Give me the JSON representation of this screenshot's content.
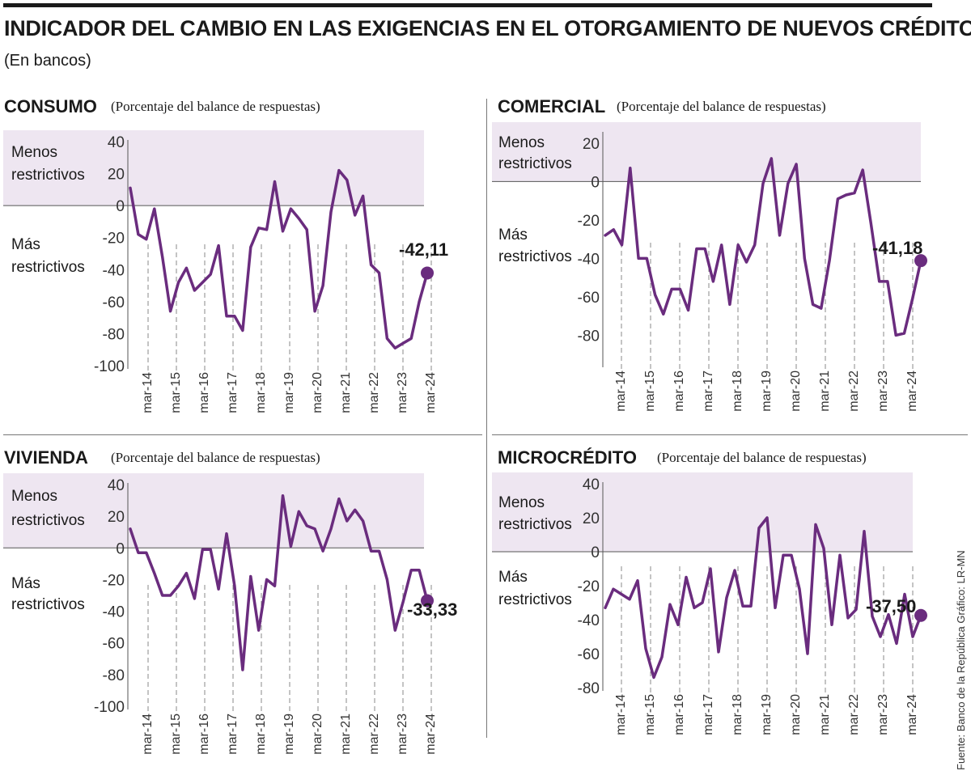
{
  "header": {
    "title": "INDICADOR DEL CAMBIO EN LAS EXIGENCIAS EN EL OTORGAMIENTO DE NUEVOS CRÉDITOS",
    "subtitle": "(En bancos)"
  },
  "source": "Fuente: Banco de la República  Gráfico: LR-MN",
  "colors": {
    "line": "#6a2c7e",
    "zone": "#eee6f1",
    "axis": "#555555",
    "text": "#1a1a1a"
  },
  "chart_data": [
    {
      "type": "line",
      "name": "CONSUMO",
      "unit_label": "(Porcentaje del balance de respuestas)",
      "zone_upper": [
        "Menos",
        "restrictivos"
      ],
      "zone_lower": [
        "Más",
        "restrictivos"
      ],
      "ylim": [
        -100,
        40
      ],
      "yticks": [
        40,
        20,
        0,
        -20,
        -40,
        -60,
        -80,
        -100
      ],
      "yticks_labels": [
        "40",
        "20",
        "0",
        "-20",
        "-40",
        "-60",
        "-80",
        "-100"
      ],
      "xlabels": [
        "mar-14",
        "mar-15",
        "mar-16",
        "mar-17",
        "mar-18",
        "mar-19",
        "mar-20",
        "mar-21",
        "mar-22",
        "mar-23",
        "mar-24"
      ],
      "values": [
        11,
        -18,
        -21,
        -2,
        -32,
        -66,
        -48,
        -39,
        -53,
        -48,
        -43,
        -25,
        -69,
        -69,
        -78,
        -26,
        -14,
        -15,
        15,
        -16,
        -2,
        -8,
        -15,
        -66,
        -50,
        -4,
        22,
        16,
        -6,
        6,
        -37,
        -42,
        -83,
        -89,
        -86,
        -83,
        -60,
        -42.11
      ],
      "end_label": "-42,11",
      "end_value": -42.11
    },
    {
      "type": "line",
      "name": "COMERCIAL",
      "unit_label": "(Porcentaje del balance de respuestas)",
      "zone_upper": [
        "Menos",
        "restrictivos"
      ],
      "zone_lower": [
        "Más",
        "restrictivos"
      ],
      "ylim": [
        -95,
        25
      ],
      "yticks": [
        20,
        0,
        -20,
        -40,
        -60,
        -80
      ],
      "yticks_labels": [
        "20",
        "0",
        "-20",
        "-40",
        "-60",
        "-80"
      ],
      "xlabels": [
        "mar-14",
        "mar-15",
        "mar-16",
        "mar-17",
        "mar-18",
        "mar-19",
        "mar-20",
        "mar-21",
        "mar-22",
        "mar-23",
        "mar-24"
      ],
      "values": [
        -28,
        -25,
        -33,
        7,
        -40,
        -40,
        -59,
        -69,
        -56,
        -56,
        -67,
        -35,
        -35,
        -52,
        -33,
        -64,
        -33,
        -42,
        -33,
        -1,
        12,
        -28,
        -1,
        9,
        -40,
        -64,
        -66,
        -41,
        -9,
        -7,
        -6,
        6,
        -22,
        -52,
        -52,
        -80,
        -79,
        -61,
        -41.18
      ],
      "end_label": "-41,18",
      "end_value": -41.18
    },
    {
      "type": "line",
      "name": "VIVIENDA",
      "unit_label": "(Porcentaje del balance de respuestas)",
      "zone_upper": [
        "Menos",
        "restrictivos"
      ],
      "zone_lower": [
        "Más",
        "restrictivos"
      ],
      "ylim": [
        -100,
        40
      ],
      "yticks": [
        40,
        20,
        0,
        -20,
        -40,
        -60,
        -80,
        -100
      ],
      "yticks_labels": [
        "40",
        "20",
        "0",
        "-20",
        "-40",
        "-60",
        "-80",
        "-100"
      ],
      "xlabels": [
        "mar-14",
        "mar-15",
        "mar-16",
        "mar-17",
        "mar-18",
        "mar-19",
        "mar-20",
        "mar-21",
        "mar-22",
        "mar-23",
        "mar-24"
      ],
      "values": [
        12,
        -3,
        -3,
        -16,
        -30,
        -30,
        -24,
        -16,
        -32,
        -1,
        -1,
        -26,
        9,
        -24,
        -77,
        -18,
        -52,
        -20,
        -24,
        33,
        1,
        23,
        14,
        12,
        -2,
        12,
        31,
        17,
        24,
        17,
        -2,
        -2,
        -20,
        -52,
        -34,
        -14,
        -14,
        -33.33
      ],
      "end_label": "-33,33",
      "end_value": -33.33
    },
    {
      "type": "line",
      "name": "MICROCRÉDITO",
      "unit_label": "(Porcentaje del balance de respuestas)",
      "zone_upper": [
        "Menos",
        "restrictivos"
      ],
      "zone_lower": [
        "Más",
        "restrictivos"
      ],
      "ylim": [
        -80,
        40
      ],
      "yticks": [
        40,
        20,
        0,
        -20,
        -40,
        -60,
        -80
      ],
      "yticks_labels": [
        "40",
        "20",
        "0",
        "-20",
        "-40",
        "-60",
        "-80"
      ],
      "xlabels": [
        "mar-14",
        "mar-15",
        "mar-16",
        "mar-17",
        "mar-18",
        "mar-19",
        "mar-20",
        "mar-21",
        "mar-22",
        "mar-23",
        "mar-24"
      ],
      "values": [
        -33,
        -22,
        -25,
        -28,
        -17,
        -57,
        -74,
        -62,
        -31,
        -43,
        -15,
        -33,
        -30,
        -10,
        -59,
        -27,
        -11,
        -32,
        -32,
        14,
        20,
        -33,
        -2,
        -2,
        -22,
        -60,
        16,
        2,
        -43,
        -2,
        -39,
        -34,
        12,
        -38,
        -50,
        -37,
        -54,
        -25,
        -50,
        -37.5
      ],
      "end_label": "-37,50",
      "end_value": -37.5
    }
  ]
}
